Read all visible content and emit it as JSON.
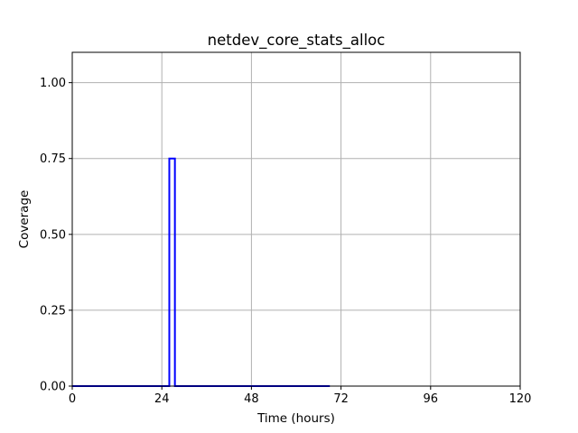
{
  "chart_data": {
    "type": "line",
    "title": "netdev_core_stats_alloc",
    "xlabel": "Time (hours)",
    "ylabel": "Coverage",
    "xlim": [
      0,
      120
    ],
    "ylim": [
      0,
      1.1
    ],
    "xticks": [
      0,
      24,
      48,
      72,
      96,
      120
    ],
    "xtick_labels": [
      "0",
      "24",
      "48",
      "72",
      "96",
      "120"
    ],
    "yticks": [
      0,
      0.25,
      0.5,
      0.75,
      1.0
    ],
    "ytick_labels": [
      "0.00",
      "0.25",
      "0.50",
      "0.75",
      "1.00"
    ],
    "grid": true,
    "legend": "none",
    "series": [
      {
        "color": "#0000ff",
        "x": [
          0,
          26.0,
          26.0,
          27.5,
          27.5,
          69
        ],
        "y": [
          0,
          0,
          0.75,
          0.75,
          0,
          0
        ]
      }
    ]
  }
}
